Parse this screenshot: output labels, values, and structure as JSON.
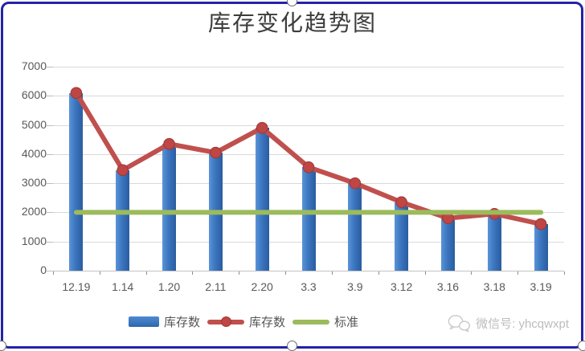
{
  "title": "库存变化趋势图",
  "legend": {
    "items": [
      {
        "id": "inventory-bars",
        "label": "库存数",
        "swatch": "bar",
        "color": "#3b76c0"
      },
      {
        "id": "inventory-line",
        "label": "库存数",
        "swatch": "line-marker",
        "color": "#c0504d"
      },
      {
        "id": "standard-line",
        "label": "标准",
        "swatch": "line",
        "color": "#9bbb59"
      }
    ]
  },
  "watermark": {
    "icon": "wechat-icon",
    "label": "微信号: yhcqwxpt"
  },
  "chart_data": {
    "type": "bar",
    "title": "库存变化趋势图",
    "categories": [
      "12.19",
      "1.14",
      "1.20",
      "2.11",
      "2.20",
      "3.3",
      "3.9",
      "3.12",
      "3.16",
      "3.18",
      "3.19"
    ],
    "series": [
      {
        "id": "bar_series",
        "name": "库存数",
        "kind": "bar",
        "color": "#3b76c0",
        "values": [
          6100,
          3450,
          4350,
          4050,
          4900,
          3550,
          3000,
          2350,
          1800,
          1950,
          1600
        ]
      },
      {
        "id": "line_series",
        "name": "库存数",
        "kind": "line",
        "marker": "circle",
        "color": "#c0504d",
        "values": [
          6100,
          3450,
          4350,
          4050,
          4900,
          3550,
          3000,
          2350,
          1800,
          1950,
          1600
        ]
      },
      {
        "id": "standard_series",
        "name": "标准",
        "kind": "line",
        "marker": "none",
        "color": "#9bbb59",
        "values": [
          2000,
          2000,
          2000,
          2000,
          2000,
          2000,
          2000,
          2000,
          2000,
          2000,
          2000
        ]
      }
    ],
    "xlabel": "",
    "ylabel": "",
    "ylim": [
      0,
      7000
    ],
    "yticks": [
      0,
      1000,
      2000,
      3000,
      4000,
      5000,
      6000,
      7000
    ],
    "grid": true,
    "legend_position": "bottom"
  },
  "colors": {
    "bar_fill": "#3b76c0",
    "line_red": "#c0504d",
    "marker_fill": "#bf4644",
    "marker_stroke": "#9e3836",
    "standard_green": "#9cbb5c",
    "gridline": "#d9d9d9",
    "axis_text": "#595959",
    "title_text": "#3c3c3c",
    "selection_border": "#2323a8",
    "watermark_text": "#bcbcbc"
  }
}
